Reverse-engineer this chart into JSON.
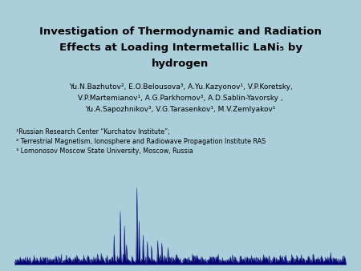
{
  "background_color": "#aacfdb",
  "title_fontsize": 9.5,
  "title_color": "#000000",
  "authors_line1": "Yu.N.Bazhutov², E.O.Belousova³, A.Yu.Kazyonov¹, V.P.Koretsky,",
  "authors_line2": "V.P.Martemianov¹, A.G.Parkhomov³, A.D.Sablin-Yavorsky ,",
  "authors_line3": "Yu.A.Sapozhnikov³, V.G.Tarasenkov¹, M.V.Zemlyakov¹",
  "authors_fontsize": 6.5,
  "affiliations_line1": "¹Russian Research Center “Kurchatov Institute”;",
  "affiliations_line2": "² Terrestrial Magnetism, Ionosphere and Radiowave Propagation Institute RAS",
  "affiliations_line3": "³ Lomonosov Moscow State University, Moscow, Russia",
  "affiliations_fontsize": 5.8,
  "chart_bg_color": "#cceeff",
  "chart_line_color": "#00006e"
}
